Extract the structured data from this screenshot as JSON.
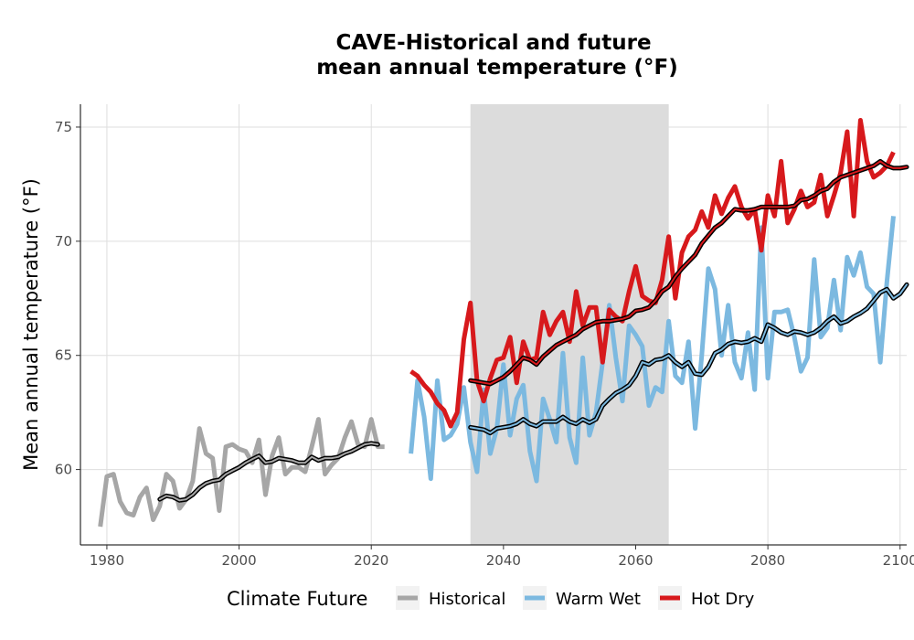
{
  "chart_data": {
    "type": "line",
    "title_line1": "CAVE-Historical and future",
    "title_line2": "mean annual temperature (°F)",
    "xlabel": "",
    "ylabel": "Mean annual temperature (°F)",
    "xlim": [
      1976,
      2101
    ],
    "ylim": [
      56.7,
      76.0
    ],
    "x_ticks": [
      1980,
      2000,
      2020,
      2040,
      2060,
      2080,
      2100
    ],
    "y_ticks": [
      60,
      65,
      70,
      75
    ],
    "grid": true,
    "shaded_period": [
      2035,
      2065
    ],
    "shaded_color": "#dcdcdc",
    "legend": {
      "title": "Climate Future",
      "placement": "bottom",
      "items": [
        "Historical",
        "Warm Wet",
        "Hot Dry"
      ]
    },
    "series": [
      {
        "name": "Historical",
        "color": "#a6a6a6",
        "x_start": 1979,
        "values": [
          57.5,
          59.7,
          59.8,
          58.6,
          58.1,
          58.0,
          58.8,
          59.2,
          57.8,
          58.4,
          59.8,
          59.5,
          58.3,
          58.7,
          59.5,
          61.8,
          60.7,
          60.5,
          58.2,
          61.0,
          61.1,
          60.9,
          60.8,
          60.3,
          61.3,
          58.9,
          60.6,
          61.4,
          59.8,
          60.1,
          60.1,
          59.9,
          61.0,
          62.2,
          59.8,
          60.2,
          60.5,
          61.4,
          62.1,
          61.1,
          61.0,
          62.2,
          61.0,
          61.0
        ]
      },
      {
        "name": "Historical",
        "role": "running mean",
        "color": "#a6a6a6",
        "x_start": 1988,
        "values": [
          58.7,
          58.85,
          58.8,
          58.65,
          58.7,
          58.9,
          59.2,
          59.4,
          59.5,
          59.55,
          59.8,
          59.95,
          60.1,
          60.3,
          60.45,
          60.6,
          60.3,
          60.35,
          60.5,
          60.45,
          60.4,
          60.3,
          60.3,
          60.55,
          60.4,
          60.5,
          60.5,
          60.55,
          60.7,
          60.8,
          60.95,
          61.1,
          61.15,
          61.1
        ]
      },
      {
        "name": "Warm Wet",
        "color": "#7cb9e0",
        "x_start": 2026,
        "values": [
          60.7,
          63.9,
          62.3,
          59.6,
          63.9,
          61.3,
          61.5,
          62.0,
          63.6,
          61.2,
          59.9,
          63.5,
          60.7,
          61.8,
          64.6,
          61.5,
          63.1,
          63.7,
          60.8,
          59.5,
          63.1,
          62.2,
          61.2,
          65.1,
          61.4,
          60.3,
          64.9,
          61.5,
          62.5,
          64.7,
          67.2,
          64.9,
          63.0,
          66.3,
          65.9,
          65.4,
          62.8,
          63.6,
          63.4,
          66.5,
          64.1,
          63.8,
          65.6,
          61.8,
          65.0,
          68.8,
          67.9,
          65.0,
          67.2,
          64.7,
          64.0,
          66.0,
          63.5,
          70.6,
          64.0,
          66.9,
          66.9,
          67.0,
          65.8,
          64.3,
          64.9,
          69.2,
          65.8,
          66.2,
          68.3,
          66.1,
          69.3,
          68.5,
          69.5,
          68.0,
          67.7,
          64.7,
          68.2,
          71.1
        ]
      },
      {
        "name": "Warm Wet",
        "role": "running mean",
        "color": "#7cb9e0",
        "x_start": 2035,
        "values": [
          61.85,
          61.8,
          61.75,
          61.6,
          61.8,
          61.85,
          61.9,
          62.0,
          62.2,
          62.0,
          61.9,
          62.1,
          62.1,
          62.1,
          62.3,
          62.1,
          62.0,
          62.2,
          62.05,
          62.2,
          62.8,
          63.1,
          63.35,
          63.5,
          63.7,
          64.1,
          64.7,
          64.6,
          64.8,
          64.85,
          65.0,
          64.7,
          64.5,
          64.7,
          64.2,
          64.15,
          64.5,
          65.1,
          65.25,
          65.5,
          65.6,
          65.55,
          65.6,
          65.75,
          65.6,
          66.35,
          66.2,
          66.0,
          65.9,
          66.05,
          66.0,
          65.9,
          66.0,
          66.2,
          66.5,
          66.7,
          66.4,
          66.5,
          66.7,
          66.85,
          67.05,
          67.4,
          67.75,
          67.9,
          67.5,
          67.7,
          68.1
        ]
      },
      {
        "name": "Hot Dry",
        "color": "#d7191c",
        "x_start": 2026,
        "values": [
          64.3,
          64.1,
          63.7,
          63.4,
          62.9,
          62.6,
          61.9,
          62.5,
          65.7,
          67.3,
          63.9,
          63.0,
          64.0,
          64.8,
          64.9,
          65.8,
          63.8,
          65.6,
          64.8,
          64.9,
          66.9,
          65.9,
          66.5,
          66.9,
          65.6,
          67.8,
          66.3,
          67.1,
          67.1,
          64.7,
          67.0,
          66.7,
          66.5,
          67.8,
          68.9,
          67.6,
          67.4,
          67.3,
          68.3,
          70.2,
          67.5,
          69.5,
          70.2,
          70.5,
          71.3,
          70.6,
          72.0,
          71.2,
          71.9,
          72.4,
          71.5,
          71.0,
          71.4,
          69.6,
          72.0,
          71.1,
          73.5,
          70.8,
          71.4,
          72.2,
          71.5,
          71.7,
          72.9,
          71.1,
          72.0,
          73.0,
          74.8,
          71.1,
          75.3,
          73.5,
          72.8,
          73.0,
          73.3,
          73.9
        ]
      },
      {
        "name": "Hot Dry",
        "role": "running mean",
        "color": "#d7191c",
        "x_start": 2035,
        "values": [
          63.9,
          63.85,
          63.8,
          63.75,
          63.9,
          64.05,
          64.3,
          64.6,
          64.9,
          64.8,
          64.6,
          64.95,
          65.2,
          65.45,
          65.6,
          65.75,
          65.9,
          66.15,
          66.3,
          66.45,
          66.5,
          66.5,
          66.55,
          66.6,
          66.7,
          66.95,
          67.0,
          67.1,
          67.4,
          67.8,
          68.0,
          68.45,
          68.8,
          69.1,
          69.4,
          69.9,
          70.25,
          70.6,
          70.8,
          71.1,
          71.4,
          71.35,
          71.35,
          71.4,
          71.5,
          71.5,
          71.5,
          71.5,
          71.5,
          71.55,
          71.8,
          71.85,
          72.0,
          72.2,
          72.3,
          72.6,
          72.8,
          72.9,
          73.0,
          73.1,
          73.2,
          73.3,
          73.5,
          73.3,
          73.2,
          73.2,
          73.25
        ]
      }
    ]
  }
}
